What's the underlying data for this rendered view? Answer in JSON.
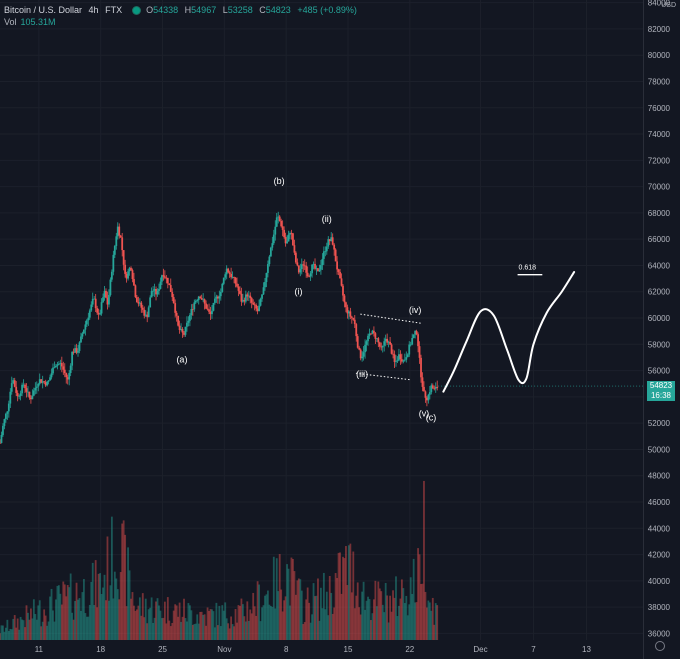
{
  "header": {
    "symbol": "Bitcoin / U.S. Dollar",
    "interval": "4h",
    "exchange": "FTX",
    "o_label": "O",
    "o_value": "54338",
    "h_label": "H",
    "h_value": "54967",
    "l_label": "L",
    "l_value": "53258",
    "c_label": "C",
    "c_value": "54823",
    "change": "+485 (+0.89%)",
    "vol_label": "Vol",
    "vol_value": "105.31M"
  },
  "price_axis": {
    "currency": "USD"
  },
  "last_price": {
    "price": "54823",
    "countdown": "16:38"
  },
  "colors": {
    "background": "#131722",
    "up": "#26a69a",
    "down": "#ef5350",
    "text": "#b2b5be",
    "drawing": "#ffffff"
  },
  "chart_data": {
    "type": "candlestick",
    "y_ticks": [
      36000,
      38000,
      40000,
      42000,
      44000,
      46000,
      48000,
      50000,
      52000,
      54000,
      56000,
      58000,
      60000,
      62000,
      64000,
      66000,
      68000,
      70000,
      72000,
      74000,
      76000,
      78000,
      80000,
      82000,
      84000
    ],
    "ylim": [
      35500,
      84200
    ],
    "x_ticks": [
      {
        "label": "11",
        "day": 11
      },
      {
        "label": "18",
        "day": 18
      },
      {
        "label": "25",
        "day": 25
      },
      {
        "label": "Nov",
        "day": 32
      },
      {
        "label": "8",
        "day": 39
      },
      {
        "label": "15",
        "day": 46
      },
      {
        "label": "22",
        "day": 53
      },
      {
        "label": "Dec",
        "day": 61
      },
      {
        "label": "7",
        "day": 67
      },
      {
        "label": "13",
        "day": 73
      }
    ],
    "xlim": [
      6.6,
      79.4
    ],
    "price_path": [
      [
        6.6,
        50500
      ],
      [
        7.0,
        52000
      ],
      [
        7.5,
        53200
      ],
      [
        8.0,
        55500
      ],
      [
        8.6,
        54000
      ],
      [
        9.3,
        55000
      ],
      [
        10.0,
        53800
      ],
      [
        11.0,
        55300
      ],
      [
        12.0,
        55000
      ],
      [
        12.8,
        56500
      ],
      [
        13.5,
        56500
      ],
      [
        14.3,
        55200
      ],
      [
        14.8,
        57500
      ],
      [
        15.4,
        57500
      ],
      [
        16.0,
        59000
      ],
      [
        16.6,
        60200
      ],
      [
        17.2,
        61500
      ],
      [
        17.8,
        60000
      ],
      [
        18.4,
        62000
      ],
      [
        18.8,
        61000
      ],
      [
        19.4,
        64500
      ],
      [
        19.9,
        67000
      ],
      [
        20.3,
        66000
      ],
      [
        20.8,
        63000
      ],
      [
        21.4,
        64000
      ],
      [
        22.0,
        61500
      ],
      [
        22.6,
        60800
      ],
      [
        23.2,
        60000
      ],
      [
        23.8,
        62200
      ],
      [
        24.4,
        61800
      ],
      [
        25.0,
        63500
      ],
      [
        25.6,
        62800
      ],
      [
        26.2,
        61500
      ],
      [
        26.8,
        59200
      ],
      [
        27.4,
        58700
      ],
      [
        28.0,
        60000
      ],
      [
        28.6,
        61200
      ],
      [
        29.2,
        61800
      ],
      [
        29.8,
        61000
      ],
      [
        30.4,
        60200
      ],
      [
        31.0,
        61400
      ],
      [
        31.6,
        62000
      ],
      [
        32.2,
        63800
      ],
      [
        32.8,
        63200
      ],
      [
        33.4,
        62500
      ],
      [
        34.0,
        61200
      ],
      [
        34.6,
        61800
      ],
      [
        35.2,
        61000
      ],
      [
        35.8,
        60500
      ],
      [
        36.4,
        62000
      ],
      [
        37.0,
        64500
      ],
      [
        37.5,
        66000
      ],
      [
        38.0,
        67800
      ],
      [
        38.5,
        67000
      ],
      [
        39.0,
        65500
      ],
      [
        39.5,
        66800
      ],
      [
        40.0,
        64500
      ],
      [
        40.4,
        63500
      ],
      [
        41.0,
        64200
      ],
      [
        41.5,
        63200
      ],
      [
        42.0,
        64000
      ],
      [
        42.6,
        63400
      ],
      [
        43.2,
        64800
      ],
      [
        43.7,
        65800
      ],
      [
        44.2,
        66000
      ],
      [
        44.7,
        64000
      ],
      [
        45.2,
        62500
      ],
      [
        45.7,
        60800
      ],
      [
        46.2,
        60200
      ],
      [
        46.7,
        59800
      ],
      [
        47.2,
        57500
      ],
      [
        47.5,
        57000
      ],
      [
        48.0,
        58000
      ],
      [
        48.6,
        59000
      ],
      [
        49.2,
        58500
      ],
      [
        49.8,
        57500
      ],
      [
        50.3,
        58500
      ],
      [
        50.8,
        57800
      ],
      [
        51.3,
        56500
      ],
      [
        51.8,
        57200
      ],
      [
        52.3,
        56700
      ],
      [
        52.8,
        57500
      ],
      [
        53.3,
        58500
      ],
      [
        53.8,
        59000
      ],
      [
        54.2,
        56000
      ],
      [
        54.6,
        54200
      ],
      [
        55.0,
        53900
      ],
      [
        55.4,
        54800
      ],
      [
        55.8,
        54500
      ],
      [
        56.2,
        54823
      ]
    ],
    "volume_path": [
      [
        6.6,
        7
      ],
      [
        10,
        18
      ],
      [
        14,
        30
      ],
      [
        18,
        40
      ],
      [
        20,
        70
      ],
      [
        22,
        25
      ],
      [
        26,
        22
      ],
      [
        30,
        18
      ],
      [
        34,
        20
      ],
      [
        37,
        35
      ],
      [
        39,
        50
      ],
      [
        41,
        25
      ],
      [
        44,
        35
      ],
      [
        46,
        55
      ],
      [
        48,
        30
      ],
      [
        51,
        28
      ],
      [
        54,
        45
      ],
      [
        54.6,
        85
      ],
      [
        55.2,
        30
      ],
      [
        56.2,
        20
      ]
    ],
    "volume_max": 100,
    "annotations": [
      {
        "text": "(a)",
        "x": 27.2,
        "y": 56600
      },
      {
        "text": "(b)",
        "x": 38.2,
        "y": 70200
      },
      {
        "text": "(i)",
        "x": 40.4,
        "y": 61800
      },
      {
        "text": "(ii)",
        "x": 43.6,
        "y": 67300
      },
      {
        "text": "(iii)",
        "x": 47.6,
        "y": 55500
      },
      {
        "text": "(iv)",
        "x": 53.6,
        "y": 60400
      },
      {
        "text": "(v)",
        "x": 54.6,
        "y": 52500
      },
      {
        "text": "(c)",
        "x": 55.4,
        "y": 52200
      },
      {
        "text": "0.618",
        "x": 66.3,
        "y": 63700
      }
    ],
    "trendlines": [
      {
        "from": [
          47.4,
          60300
        ],
        "to": [
          54.3,
          59600
        ]
      },
      {
        "from": [
          46.9,
          55800
        ],
        "to": [
          53.1,
          55300
        ]
      }
    ],
    "fib_line": {
      "from": [
        65.2,
        63300
      ],
      "to": [
        68.0,
        63300
      ]
    },
    "projection": [
      [
        56.8,
        54400
      ],
      [
        58.0,
        56000
      ],
      [
        59.4,
        58200
      ],
      [
        61.0,
        60500
      ],
      [
        62.5,
        60200
      ],
      [
        64.0,
        57600
      ],
      [
        65.3,
        55300
      ],
      [
        66.2,
        55400
      ],
      [
        67.0,
        58000
      ],
      [
        68.5,
        60400
      ],
      [
        70.2,
        62000
      ],
      [
        71.6,
        63500
      ]
    ]
  }
}
